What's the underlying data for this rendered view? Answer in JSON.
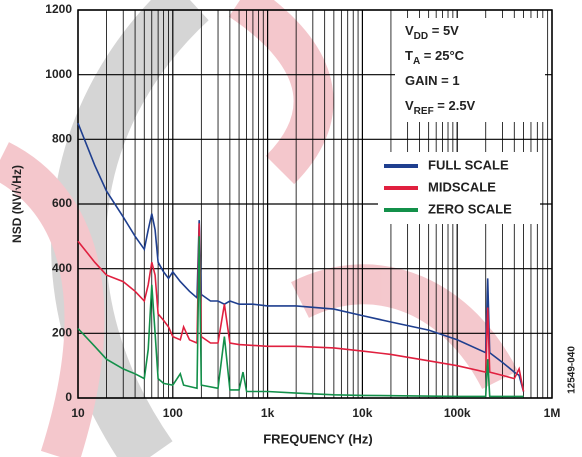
{
  "chart_data": {
    "type": "line",
    "xlabel": "FREQUENCY (Hz)",
    "ylabel": "NSD (NV/√Hz)",
    "side_note": "12549-040",
    "xscale": "log",
    "xlim": [
      10,
      1000000
    ],
    "ylim": [
      0,
      1200
    ],
    "xticks": [
      10,
      100,
      {
        "value": 1000,
        "label": "1k"
      },
      {
        "value": 10000,
        "label": "10k"
      },
      {
        "value": 100000,
        "label": "100k"
      },
      {
        "value": 1000000,
        "label": "1M"
      }
    ],
    "yticks": [
      0,
      200,
      400,
      600,
      800,
      1000,
      1200
    ],
    "grid": true,
    "legend": "right",
    "annotations": [
      {
        "text": "V",
        "sub": "DD",
        "tail": " = 5V"
      },
      {
        "text": "T",
        "sub": "A",
        "tail": " = 25°C"
      },
      {
        "text": "GAIN = 1"
      },
      {
        "text": "V",
        "sub": "REF",
        "tail": " = 2.5V"
      }
    ],
    "series": [
      {
        "name": "FULL SCALE",
        "color": "#1f3f8f",
        "x": [
          10,
          15,
          20,
          30,
          40,
          50,
          55,
          60,
          65,
          70,
          80,
          90,
          100,
          120,
          150,
          180,
          190,
          200,
          250,
          300,
          350,
          400,
          500,
          700,
          1000,
          2000,
          5000,
          10000,
          20000,
          50000,
          100000,
          200000,
          210000,
          220000,
          300000,
          400000,
          450000,
          500000
        ],
        "values": [
          850,
          720,
          640,
          560,
          500,
          460,
          520,
          570,
          520,
          420,
          390,
          370,
          390,
          360,
          330,
          310,
          550,
          320,
          300,
          300,
          290,
          300,
          290,
          290,
          285,
          285,
          275,
          255,
          235,
          210,
          180,
          140,
          370,
          140,
          110,
          80,
          70,
          20
        ]
      },
      {
        "name": "MIDSCALE",
        "color": "#e0203f",
        "x": [
          10,
          15,
          20,
          30,
          40,
          50,
          55,
          60,
          65,
          70,
          80,
          90,
          100,
          120,
          130,
          150,
          180,
          190,
          200,
          250,
          300,
          350,
          400,
          500,
          1000,
          2000,
          5000,
          10000,
          20000,
          50000,
          100000,
          200000,
          210000,
          220000,
          300000,
          400000,
          450000,
          500000
        ],
        "values": [
          485,
          420,
          380,
          360,
          330,
          300,
          350,
          420,
          380,
          260,
          240,
          220,
          190,
          180,
          220,
          180,
          170,
          540,
          190,
          170,
          170,
          290,
          170,
          165,
          160,
          160,
          155,
          145,
          135,
          115,
          100,
          80,
          280,
          80,
          70,
          60,
          90,
          20
        ]
      },
      {
        "name": "ZERO SCALE",
        "color": "#13904a",
        "x": [
          10,
          15,
          20,
          30,
          40,
          50,
          55,
          60,
          65,
          70,
          80,
          100,
          120,
          130,
          180,
          190,
          200,
          300,
          350,
          400,
          500,
          550,
          600,
          1000,
          2000,
          5000,
          10000,
          100000,
          200000,
          210000,
          220000,
          500000
        ],
        "values": [
          215,
          160,
          120,
          90,
          75,
          60,
          150,
          350,
          200,
          60,
          45,
          40,
          75,
          40,
          30,
          500,
          40,
          30,
          190,
          25,
          25,
          80,
          20,
          20,
          15,
          10,
          8,
          5,
          5,
          120,
          5,
          5
        ]
      }
    ]
  }
}
